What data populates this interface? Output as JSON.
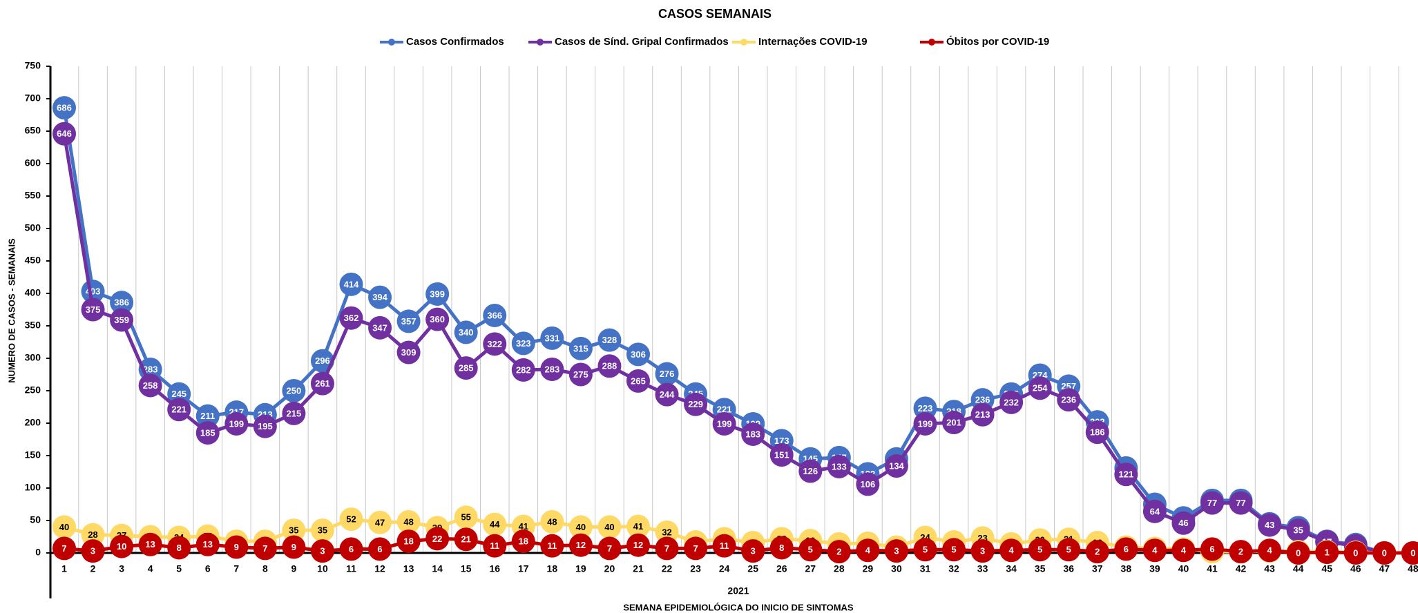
{
  "chart_data": {
    "type": "line",
    "title": "CASOS SEMANAIS",
    "y_label": "NUMERO DE CASOS - SEMANAIS",
    "x_label": "SEMANA EPIDEMIOLÓGICA DO INICIO DE SINTOMAS",
    "x_group_label": "2021",
    "categories": [
      "1",
      "2",
      "3",
      "4",
      "5",
      "6",
      "7",
      "8",
      "9",
      "10",
      "11",
      "12",
      "13",
      "14",
      "15",
      "16",
      "17",
      "18",
      "19",
      "20",
      "21",
      "22",
      "23",
      "24",
      "25",
      "26",
      "27",
      "28",
      "29",
      "30",
      "31",
      "32",
      "33",
      "34",
      "35",
      "36",
      "37",
      "38",
      "39",
      "40",
      "41",
      "42",
      "43",
      "44",
      "45",
      "46",
      "47",
      "48"
    ],
    "series": [
      {
        "name": "Casos Confirmados",
        "color": "#4472c4",
        "label_color": "#ffffff",
        "values": [
          686,
          403,
          386,
          283,
          245,
          211,
          217,
          213,
          250,
          296,
          414,
          394,
          357,
          399,
          340,
          366,
          323,
          331,
          315,
          328,
          306,
          276,
          245,
          221,
          199,
          173,
          145,
          147,
          122,
          145,
          223,
          218,
          236,
          245,
          274,
          257,
          202,
          131,
          75,
          54,
          81,
          81,
          45,
          39,
          18,
          13,
          0,
          0
        ]
      },
      {
        "name": "Casos de Sínd. Gripal Confirmados",
        "color": "#7030a0",
        "label_color": "#ffffff",
        "values": [
          646,
          375,
          359,
          258,
          221,
          185,
          199,
          195,
          215,
          261,
          362,
          347,
          309,
          360,
          285,
          322,
          282,
          283,
          275,
          288,
          265,
          244,
          229,
          199,
          183,
          151,
          126,
          133,
          106,
          134,
          199,
          201,
          213,
          232,
          254,
          236,
          186,
          121,
          64,
          46,
          77,
          77,
          43,
          35,
          17,
          11,
          0,
          0
        ]
      },
      {
        "name": "Internações COVID-19",
        "color": "#ffd966",
        "label_color": "#000000",
        "values": [
          40,
          28,
          27,
          25,
          24,
          26,
          18,
          18,
          35,
          35,
          52,
          47,
          48,
          39,
          55,
          44,
          41,
          48,
          40,
          40,
          41,
          32,
          17,
          22,
          16,
          22,
          19,
          14,
          15,
          9,
          24,
          17,
          23,
          14,
          20,
          21,
          16,
          9,
          7,
          6,
          2,
          2,
          3,
          2,
          2,
          1,
          0,
          0
        ]
      },
      {
        "name": "Óbitos por COVID-19",
        "color": "#c00000",
        "label_color": "#ffffff",
        "values": [
          7,
          3,
          10,
          13,
          8,
          13,
          9,
          7,
          9,
          3,
          6,
          6,
          18,
          22,
          21,
          11,
          18,
          11,
          12,
          7,
          12,
          7,
          7,
          11,
          3,
          8,
          5,
          2,
          4,
          3,
          5,
          5,
          3,
          4,
          5,
          5,
          2,
          6,
          4,
          4,
          6,
          2,
          4,
          0,
          1,
          0,
          0,
          0
        ]
      }
    ],
    "ylim": [
      -70,
      750
    ],
    "yticks": [
      0,
      50,
      100,
      150,
      200,
      250,
      300,
      350,
      400,
      450,
      500,
      550,
      600,
      650,
      700,
      750
    ],
    "grid": true,
    "legend": "top"
  }
}
